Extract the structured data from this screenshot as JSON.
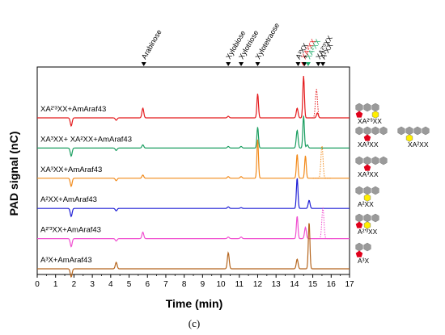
{
  "chart_data": {
    "type": "line",
    "xlabel": "Time (min)",
    "ylabel": "PAD signal (nC)",
    "xlim": [
      0,
      17
    ],
    "xticks": [
      "0",
      "1",
      "2",
      "3",
      "4",
      "5",
      "6",
      "7",
      "8",
      "9",
      "10",
      "11",
      "12",
      "13",
      "14",
      "15",
      "16",
      "17"
    ],
    "caption": "(c)",
    "peak_markers": [
      {
        "x": 5.8,
        "label": "Arabinose",
        "color": "#000000"
      },
      {
        "x": 10.4,
        "label": "Xylobiose",
        "color": "#000000"
      },
      {
        "x": 11.1,
        "label": "Xylotriose",
        "color": "#000000"
      },
      {
        "x": 12.0,
        "label": "Xylotetraose",
        "color": "#000000"
      },
      {
        "x": 14.2,
        "label": "A³XX",
        "color": "#000000"
      },
      {
        "x": 14.5,
        "label": "XA³XX",
        "color": "#e41a1c"
      },
      {
        "x": 14.55,
        "label": "+",
        "color": "#000000"
      },
      {
        "x": 14.75,
        "label": "XA²XX",
        "color": "#1fae6c"
      },
      {
        "x": 15.3,
        "label": "XA²'³XX",
        "color": "#000000"
      },
      {
        "x": 15.55,
        "label": "A²XX",
        "color": "#000000"
      }
    ],
    "series": [
      {
        "name": "XA²'³XX+AmAraf43",
        "color": "#e41a1c",
        "peaks": [
          [
            1.85,
            -10
          ],
          [
            4.3,
            -3
          ],
          [
            5.75,
            12
          ],
          [
            10.4,
            2
          ],
          [
            12.0,
            30
          ],
          [
            14.15,
            12
          ],
          [
            14.5,
            52
          ],
          [
            15.25,
            6
          ]
        ],
        "dotted_peak": {
          "x": 15.2,
          "height": 35
        }
      },
      {
        "name": "XA³XX+ XA²XX+AmAraf43",
        "color": "#1a9e60",
        "peaks": [
          [
            1.85,
            -10
          ],
          [
            4.3,
            -3
          ],
          [
            5.75,
            4
          ],
          [
            10.4,
            2
          ],
          [
            11.1,
            2
          ],
          [
            12.0,
            26
          ],
          [
            14.15,
            22
          ],
          [
            14.5,
            40
          ],
          [
            14.7,
            4
          ]
        ]
      },
      {
        "name": "XA³XX+AmAraf43",
        "color": "#f28a1a",
        "peaks": [
          [
            1.85,
            -10
          ],
          [
            4.3,
            -3
          ],
          [
            5.75,
            4
          ],
          [
            10.4,
            2
          ],
          [
            11.1,
            2
          ],
          [
            12.0,
            48
          ],
          [
            14.15,
            30
          ],
          [
            14.6,
            28
          ]
        ],
        "dotted_peak": {
          "x": 15.5,
          "height": 40
        }
      },
      {
        "name": "A²XX+AmAraf43",
        "color": "#1f1fd6",
        "peaks": [
          [
            1.85,
            -10
          ],
          [
            4.3,
            -3
          ],
          [
            10.4,
            2
          ],
          [
            11.1,
            1
          ],
          [
            14.15,
            38
          ],
          [
            14.8,
            10
          ]
        ]
      },
      {
        "name": "A²'³XX+AmAraf43",
        "color": "#f04fd0",
        "peaks": [
          [
            1.85,
            -10
          ],
          [
            4.3,
            -3
          ],
          [
            5.75,
            8
          ],
          [
            10.4,
            2
          ],
          [
            11.1,
            2
          ],
          [
            14.15,
            28
          ],
          [
            14.6,
            14
          ]
        ],
        "dotted_peak": {
          "x": 15.55,
          "height": 38
        }
      },
      {
        "name": "A³X+AmAraf43",
        "color": "#b5651d",
        "peaks": [
          [
            1.85,
            -10
          ],
          [
            4.3,
            8
          ],
          [
            10.4,
            20
          ],
          [
            14.15,
            12
          ],
          [
            14.8,
            58
          ]
        ]
      }
    ],
    "legend_structures": [
      {
        "label": "XA²'³XX"
      },
      {
        "label": "XA³XX"
      },
      {
        "label": "XA²XX"
      },
      {
        "label": "XA³XX"
      },
      {
        "label": "A²XX"
      },
      {
        "label": "A²'³XX"
      },
      {
        "label": "A³X"
      }
    ]
  }
}
